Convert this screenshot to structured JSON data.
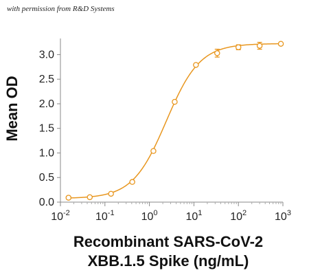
{
  "credit": "with permission from R&D Systems",
  "chart_data": {
    "type": "scatter",
    "xscale": "log",
    "xlim": [
      0.01,
      1000
    ],
    "ylim": [
      0,
      3.3
    ],
    "ylabel": "Mean OD",
    "xlabel_line1": "Recombinant SARS-CoV-2",
    "xlabel_line2": "XBB.1.5 Spike (ng/mL)",
    "yticks": [
      0.0,
      0.5,
      1.0,
      1.5,
      2.0,
      2.5,
      3.0
    ],
    "ytick_labels": [
      "0.0",
      "0.5",
      "1.0",
      "1.5",
      "2.0",
      "2.5",
      "3.0"
    ],
    "xticks": [
      {
        "base": "10",
        "exp": "-2"
      },
      {
        "base": "10",
        "exp": "-1"
      },
      {
        "base": "10",
        "exp": "0"
      },
      {
        "base": "10",
        "exp": "1"
      },
      {
        "base": "10",
        "exp": "2"
      },
      {
        "base": "10",
        "exp": "3"
      }
    ],
    "series": [
      {
        "color": "#E8961E",
        "marker": "open-circle",
        "fit": "4-parameter logistic",
        "x": [
          0.0152,
          0.0457,
          0.137,
          0.412,
          1.23,
          3.7,
          11.1,
          33.3,
          100,
          300,
          900
        ],
        "y": [
          0.09,
          0.1,
          0.17,
          0.41,
          1.04,
          2.04,
          2.79,
          3.03,
          3.15,
          3.18,
          3.22
        ],
        "err": [
          0.0,
          0.0,
          0.01,
          0.01,
          0.01,
          0.01,
          0.02,
          0.08,
          0.05,
          0.07,
          0.0
        ]
      }
    ]
  }
}
